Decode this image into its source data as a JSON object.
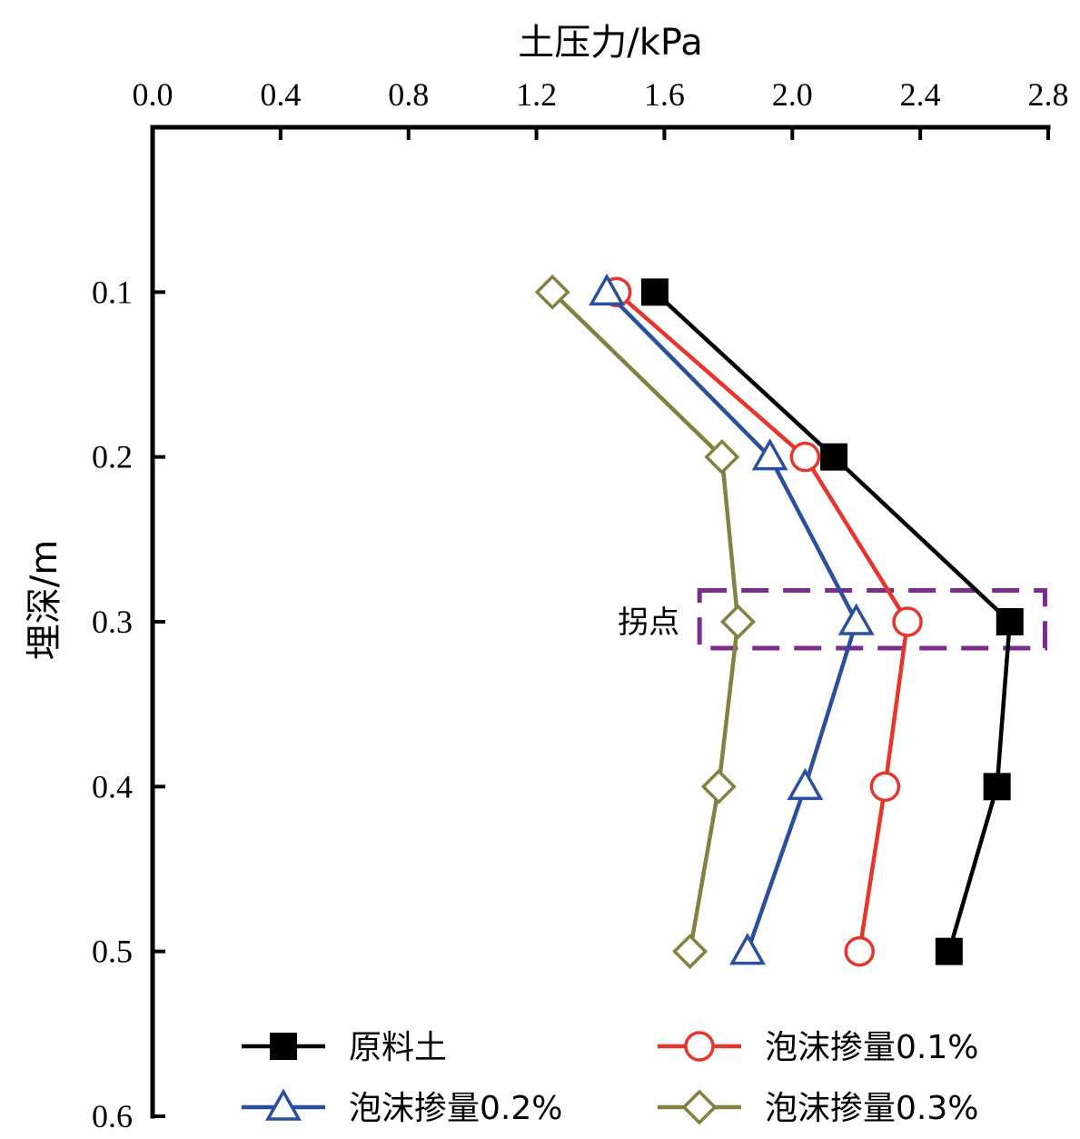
{
  "chart_data": {
    "type": "line",
    "xlabel": "土压力/kPa",
    "ylabel": "埋深/m",
    "xlim": [
      0.0,
      2.8
    ],
    "ylim": [
      0.6,
      0.0
    ],
    "x_axis_position": "top",
    "y_inverted": true,
    "xticks": [
      "0.0",
      "0.4",
      "0.8",
      "1.2",
      "1.6",
      "2.0",
      "2.4",
      "2.8"
    ],
    "yticks": [
      "0.1",
      "0.2",
      "0.3",
      "0.4",
      "0.5",
      "0.6"
    ],
    "grid": false,
    "legend_position": "bottom",
    "series": [
      {
        "name": "原料土",
        "color": "#000000",
        "marker": "filled-square",
        "points": [
          [
            1.57,
            0.1
          ],
          [
            2.13,
            0.2
          ],
          [
            2.68,
            0.3
          ],
          [
            2.64,
            0.4
          ],
          [
            2.49,
            0.5
          ]
        ]
      },
      {
        "name": "泡沫掺量0.1%",
        "color": "#e8352c",
        "marker": "open-circle",
        "points": [
          [
            1.45,
            0.1
          ],
          [
            2.04,
            0.2
          ],
          [
            2.36,
            0.3
          ],
          [
            2.29,
            0.4
          ],
          [
            2.21,
            0.5
          ]
        ]
      },
      {
        "name": "泡沫掺量0.2%",
        "color": "#2a4f9c",
        "marker": "open-triangle",
        "points": [
          [
            1.42,
            0.1
          ],
          [
            1.93,
            0.2
          ],
          [
            2.2,
            0.3
          ],
          [
            2.04,
            0.4
          ],
          [
            1.86,
            0.5
          ]
        ]
      },
      {
        "name": "泡沫掺量0.3%",
        "color": "#838040",
        "marker": "open-diamond",
        "points": [
          [
            1.25,
            0.1
          ],
          [
            1.78,
            0.2
          ],
          [
            1.83,
            0.3
          ],
          [
            1.77,
            0.4
          ],
          [
            1.68,
            0.5
          ]
        ]
      }
    ],
    "annotation": {
      "text": "拐点",
      "color": "#7b2d8e",
      "x_range": [
        1.71,
        2.79
      ],
      "y_range": [
        0.281,
        0.316
      ]
    }
  }
}
